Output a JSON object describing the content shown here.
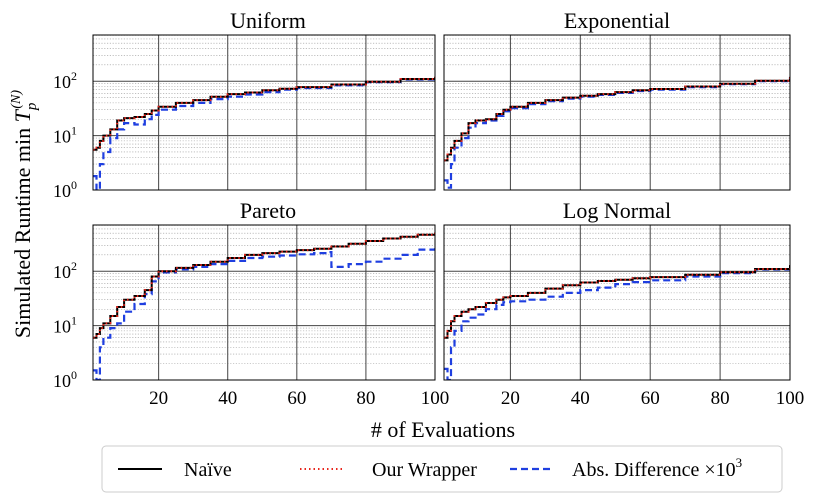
{
  "figure": {
    "ylabel_main": "Simulated Runtime min ",
    "ylabel_T": "T",
    "ylabel_sub": "p",
    "ylabel_sup": "(N)",
    "xlabel": "# of Evaluations",
    "legend": {
      "naive": "Naïve",
      "wrapper": "Our Wrapper",
      "absdiff": "Abs. Difference ×10",
      "absdiff_exp": "3"
    }
  },
  "chart_data": [
    {
      "type": "line",
      "title": "Uniform",
      "xlim": [
        1,
        100
      ],
      "ylim_log10": [
        0,
        2.85
      ],
      "yscale": "log",
      "x_ticks": [
        20,
        40,
        60,
        80,
        100
      ],
      "y_ticks": [
        "10^0",
        "10^1",
        "10^2"
      ],
      "grid": true,
      "series": [
        {
          "name": "Naïve",
          "color": "#000000",
          "x": [
            1,
            2,
            3,
            4,
            6,
            8,
            10,
            13,
            16,
            18,
            20,
            25,
            30,
            35,
            40,
            45,
            50,
            55,
            60,
            70,
            80,
            90,
            100
          ],
          "y": [
            5.5,
            6,
            8,
            10,
            13,
            19,
            21,
            22,
            25,
            29,
            34,
            40,
            45,
            52,
            58,
            62,
            68,
            73,
            78,
            87,
            98,
            110,
            120
          ]
        },
        {
          "name": "Our Wrapper",
          "color": "#e8261c",
          "x": [
            1,
            2,
            3,
            4,
            6,
            8,
            10,
            13,
            16,
            18,
            20,
            25,
            30,
            35,
            40,
            45,
            50,
            55,
            60,
            70,
            80,
            90,
            100
          ],
          "y": [
            5.5,
            6,
            8,
            10,
            13,
            19,
            21,
            22,
            25,
            29,
            34,
            40,
            45,
            52,
            58,
            62,
            68,
            73,
            78,
            87,
            98,
            110,
            120
          ]
        },
        {
          "name": "Abs. Difference ×10³",
          "color": "#1f3fe0",
          "x": [
            1,
            2,
            3,
            4,
            6,
            8,
            10,
            13,
            16,
            18,
            20,
            25,
            30,
            35,
            40,
            45,
            50,
            55,
            60,
            70,
            80,
            90,
            100
          ],
          "y": [
            1.8,
            0.9,
            3,
            5,
            9,
            13,
            17,
            16,
            20,
            24,
            30,
            35,
            40,
            47,
            52,
            57,
            63,
            70,
            75,
            84,
            96,
            108,
            118
          ]
        }
      ]
    },
    {
      "type": "line",
      "title": "Exponential",
      "xlim": [
        1,
        100
      ],
      "ylim_log10": [
        0,
        2.85
      ],
      "yscale": "log",
      "x_ticks": [
        20,
        40,
        60,
        80,
        100
      ],
      "y_ticks": [
        "10^0",
        "10^1",
        "10^2"
      ],
      "grid": true,
      "series": [
        {
          "name": "Naïve",
          "color": "#000000",
          "x": [
            1,
            2,
            3,
            4,
            6,
            8,
            10,
            13,
            16,
            18,
            20,
            25,
            30,
            35,
            40,
            45,
            50,
            55,
            60,
            70,
            80,
            90,
            100
          ],
          "y": [
            3.5,
            4.5,
            6,
            8,
            11,
            17,
            19,
            20,
            25,
            30,
            34,
            40,
            45,
            50,
            54,
            58,
            63,
            68,
            72,
            80,
            90,
            102,
            120
          ]
        },
        {
          "name": "Our Wrapper",
          "color": "#e8261c",
          "x": [
            1,
            2,
            3,
            4,
            6,
            8,
            10,
            13,
            16,
            18,
            20,
            25,
            30,
            35,
            40,
            45,
            50,
            55,
            60,
            70,
            80,
            90,
            100
          ],
          "y": [
            3.5,
            4.5,
            6,
            8,
            11,
            17,
            19,
            20,
            25,
            30,
            34,
            40,
            45,
            50,
            54,
            58,
            63,
            68,
            72,
            80,
            90,
            102,
            120
          ]
        },
        {
          "name": "Abs. Difference ×10³",
          "color": "#1f3fe0",
          "x": [
            1,
            2,
            3,
            4,
            6,
            8,
            10,
            13,
            16,
            18,
            20,
            25,
            30,
            35,
            40,
            45,
            50,
            55,
            60,
            70,
            80,
            90,
            100
          ],
          "y": [
            1.5,
            1.1,
            3,
            6,
            9,
            14,
            17,
            19,
            23,
            28,
            32,
            38,
            43,
            48,
            52,
            56,
            61,
            66,
            70,
            78,
            88,
            100,
            118
          ]
        }
      ]
    },
    {
      "type": "line",
      "title": "Pareto",
      "xlim": [
        1,
        100
      ],
      "ylim_log10": [
        0,
        2.85
      ],
      "yscale": "log",
      "x_ticks": [
        20,
        40,
        60,
        80,
        100
      ],
      "y_ticks": [
        "10^0",
        "10^1",
        "10^2"
      ],
      "grid": true,
      "series": [
        {
          "name": "Naïve",
          "color": "#000000",
          "x": [
            1,
            2,
            3,
            4,
            6,
            8,
            10,
            13,
            16,
            18,
            20,
            25,
            30,
            35,
            40,
            45,
            50,
            55,
            60,
            65,
            70,
            75,
            80,
            85,
            90,
            95,
            100
          ],
          "y": [
            6,
            7,
            9,
            11,
            15,
            22,
            30,
            35,
            45,
            80,
            100,
            115,
            130,
            150,
            175,
            200,
            215,
            230,
            245,
            260,
            285,
            320,
            360,
            400,
            430,
            470,
            510
          ]
        },
        {
          "name": "Our Wrapper",
          "color": "#e8261c",
          "x": [
            1,
            2,
            3,
            4,
            6,
            8,
            10,
            13,
            16,
            18,
            20,
            25,
            30,
            35,
            40,
            45,
            50,
            55,
            60,
            65,
            70,
            75,
            80,
            85,
            90,
            95,
            100
          ],
          "y": [
            6,
            7,
            9,
            11,
            15,
            22,
            30,
            35,
            45,
            80,
            100,
            115,
            130,
            150,
            175,
            200,
            215,
            230,
            245,
            260,
            285,
            320,
            360,
            400,
            430,
            470,
            510
          ]
        },
        {
          "name": "Abs. Difference ×10³",
          "color": "#1f3fe0",
          "x": [
            1,
            2,
            3,
            4,
            6,
            8,
            10,
            13,
            16,
            18,
            20,
            25,
            30,
            35,
            40,
            45,
            50,
            55,
            60,
            65,
            69,
            70,
            75,
            80,
            85,
            90,
            95,
            100
          ],
          "y": [
            1.5,
            0.7,
            4,
            6,
            9,
            11,
            18,
            25,
            38,
            65,
            95,
            108,
            120,
            135,
            155,
            175,
            185,
            195,
            205,
            215,
            225,
            120,
            135,
            150,
            170,
            200,
            250,
            310
          ]
        }
      ]
    },
    {
      "type": "line",
      "title": "Log Normal",
      "xlim": [
        1,
        100
      ],
      "ylim_log10": [
        0,
        2.85
      ],
      "yscale": "log",
      "x_ticks": [
        20,
        40,
        60,
        80,
        100
      ],
      "y_ticks": [
        "10^0",
        "10^1",
        "10^2"
      ],
      "grid": true,
      "series": [
        {
          "name": "Naïve",
          "color": "#000000",
          "x": [
            1,
            2,
            3,
            4,
            6,
            8,
            10,
            13,
            16,
            18,
            20,
            25,
            30,
            35,
            40,
            45,
            50,
            55,
            60,
            70,
            80,
            90,
            100
          ],
          "y": [
            6,
            8,
            12,
            15,
            18,
            20,
            22,
            26,
            30,
            33,
            35,
            40,
            48,
            55,
            62,
            66,
            70,
            74,
            78,
            86,
            96,
            110,
            130
          ]
        },
        {
          "name": "Our Wrapper",
          "color": "#e8261c",
          "x": [
            1,
            2,
            3,
            4,
            6,
            8,
            10,
            13,
            16,
            18,
            20,
            25,
            30,
            35,
            40,
            45,
            50,
            55,
            60,
            70,
            80,
            90,
            100
          ],
          "y": [
            6,
            8,
            12,
            15,
            18,
            20,
            22,
            26,
            30,
            33,
            35,
            40,
            48,
            55,
            62,
            66,
            70,
            74,
            78,
            86,
            96,
            110,
            130
          ]
        },
        {
          "name": "Abs. Difference ×10³",
          "color": "#1f3fe0",
          "x": [
            1,
            2,
            3,
            4,
            6,
            8,
            10,
            13,
            16,
            18,
            20,
            25,
            30,
            35,
            40,
            45,
            50,
            55,
            60,
            70,
            80,
            90,
            100
          ],
          "y": [
            1.6,
            0.9,
            4,
            8,
            12,
            14,
            16,
            20,
            24,
            27,
            28,
            30,
            34,
            40,
            45,
            50,
            58,
            63,
            68,
            80,
            92,
            108,
            120
          ]
        }
      ]
    }
  ]
}
